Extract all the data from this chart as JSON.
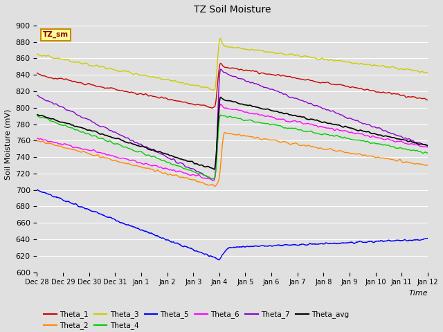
{
  "title": "TZ Soil Moisture",
  "ylabel": "Soil Moisture (mV)",
  "xlabel": "Time",
  "legend_label": "TZ_sm",
  "ylim": [
    600,
    910
  ],
  "background_color": "#e0e0e0",
  "colors": {
    "Theta_1": "#cc0000",
    "Theta_2": "#ff8800",
    "Theta_3": "#cccc00",
    "Theta_4": "#00cc00",
    "Theta_5": "#0000ff",
    "Theta_6": "#ff00ff",
    "Theta_7": "#8800cc",
    "Theta_avg": "#000000"
  },
  "tick_labels": [
    "Dec 28",
    "Dec 29",
    "Dec 30",
    "Dec 31",
    "Jan 1",
    "Jan 2",
    "Jan 3",
    "Jan 4",
    "Jan 5",
    "Jan 6",
    "Jan 7",
    "Jan 8",
    "Jan 9",
    "Jan 10",
    "Jan 11",
    "Jan 12"
  ]
}
